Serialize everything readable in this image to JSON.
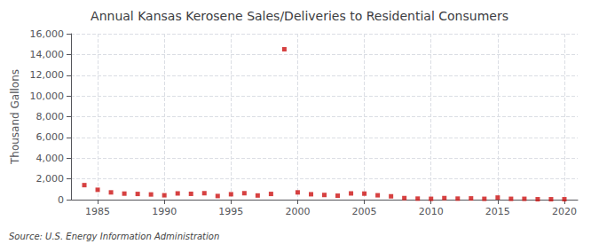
{
  "chart_data": {
    "type": "scatter",
    "title": "Annual Kansas Kerosene Sales/Deliveries to Residential Consumers",
    "ylabel": "Thousand Gallons",
    "annotation": "Source: U.S. Energy Information Administration",
    "x": [
      1984,
      1985,
      1986,
      1987,
      1988,
      1989,
      1990,
      1991,
      1992,
      1993,
      1994,
      1995,
      1996,
      1997,
      1998,
      1999,
      2000,
      2001,
      2002,
      2003,
      2004,
      2005,
      2006,
      2007,
      2008,
      2009,
      2010,
      2011,
      2012,
      2013,
      2014,
      2015,
      2016,
      2017,
      2018,
      2019,
      2020
    ],
    "values": [
      1400,
      950,
      700,
      580,
      550,
      500,
      420,
      600,
      560,
      620,
      350,
      520,
      620,
      400,
      550,
      14500,
      700,
      520,
      450,
      380,
      600,
      580,
      420,
      320,
      150,
      100,
      80,
      150,
      100,
      120,
      80,
      200,
      80,
      80,
      40,
      40,
      40
    ],
    "color": "#cc1111",
    "marker": "square",
    "xlim": [
      1983,
      2021
    ],
    "xticks": [
      1985,
      1990,
      1995,
      2000,
      2005,
      2010,
      2015,
      2020
    ],
    "ylim": [
      0,
      16000
    ],
    "yticks": [
      0,
      {
        "value": 2000,
        "label": "2,000"
      },
      {
        "value": 4000,
        "label": "4,000"
      },
      {
        "value": 6000,
        "label": "6,000"
      },
      {
        "value": 8000,
        "label": "8,000"
      },
      {
        "value": 10000,
        "label": "10,000"
      },
      {
        "value": 12000,
        "label": "12,000"
      },
      {
        "value": 14000,
        "label": "14,000"
      },
      {
        "value": 16000,
        "label": "16,000"
      }
    ],
    "grid": true
  }
}
